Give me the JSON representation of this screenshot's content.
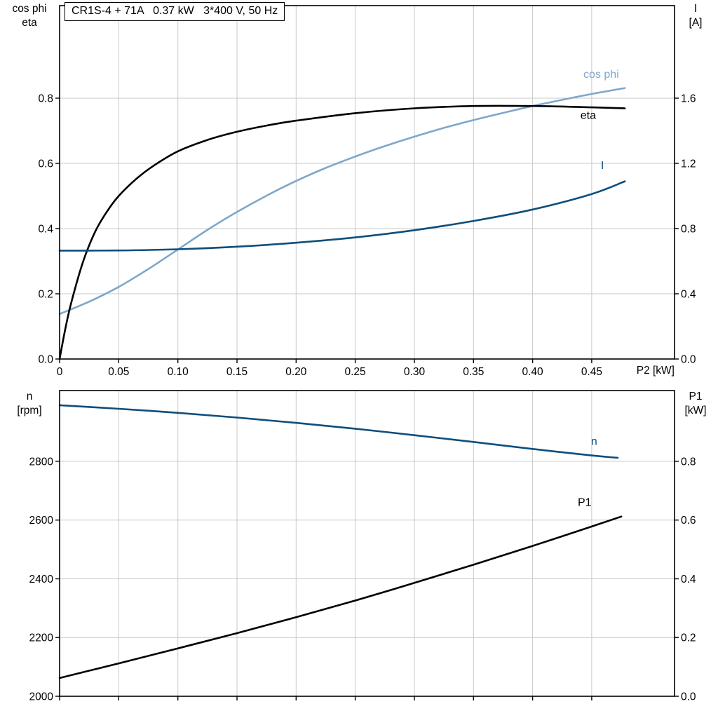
{
  "chart_data": [
    {
      "type": "line",
      "title": "CR1S-4 + 71A   0.37 kW   3*400 V, 50 Hz",
      "grid": true,
      "legend_position": "inline-curve-labels",
      "x_axis": {
        "label": "P2 [kW]",
        "min": 0,
        "max": 0.52,
        "ticks": [
          0,
          0.05,
          0.1,
          0.15,
          0.2,
          0.25,
          0.3,
          0.35,
          0.4,
          0.45
        ],
        "tick_labels": [
          "0",
          "0.05",
          "0.10",
          "0.15",
          "0.20",
          "0.25",
          "0.30",
          "0.35",
          "0.40",
          "0.45"
        ],
        "show_tick_labels": true
      },
      "y_left": {
        "labels": [
          "cos phi",
          "eta"
        ],
        "min": 0,
        "max": 1.084,
        "ticks": [
          0,
          0.2,
          0.4,
          0.6,
          0.8
        ],
        "tick_labels": [
          "0.0",
          "0.2",
          "0.4",
          "0.6",
          "0.8"
        ]
      },
      "y_right": {
        "labels": [
          "I",
          "[A]"
        ],
        "min": 0,
        "max": 2.168,
        "ticks": [
          0,
          0.4,
          0.8,
          1.2,
          1.6
        ],
        "tick_labels": [
          "0.0",
          "0.4",
          "0.8",
          "1.2",
          "1.6"
        ]
      },
      "series": [
        {
          "name": "cos phi",
          "slug": "cos-phi",
          "axis": "left",
          "color": "#7ea7ca",
          "width": 2.6,
          "label": {
            "text": "cos phi",
            "x": 0.458,
            "y": 0.862,
            "anchor": "middle"
          },
          "points": [
            [
              0,
              0.138
            ],
            [
              0.025,
              0.176
            ],
            [
              0.05,
              0.221
            ],
            [
              0.075,
              0.276
            ],
            [
              0.1,
              0.336
            ],
            [
              0.125,
              0.396
            ],
            [
              0.15,
              0.451
            ],
            [
              0.175,
              0.501
            ],
            [
              0.2,
              0.546
            ],
            [
              0.225,
              0.586
            ],
            [
              0.25,
              0.621
            ],
            [
              0.275,
              0.653
            ],
            [
              0.3,
              0.682
            ],
            [
              0.325,
              0.709
            ],
            [
              0.35,
              0.733
            ],
            [
              0.375,
              0.755
            ],
            [
              0.4,
              0.776
            ],
            [
              0.425,
              0.795
            ],
            [
              0.45,
              0.813
            ],
            [
              0.478,
              0.831
            ]
          ]
        },
        {
          "name": "eta",
          "slug": "eta",
          "axis": "left",
          "color": "#000000",
          "width": 2.6,
          "label": {
            "text": "eta",
            "x": 0.447,
            "y": 0.737,
            "anchor": "middle"
          },
          "points": [
            [
              0,
              0
            ],
            [
              0.005,
              0.095
            ],
            [
              0.01,
              0.175
            ],
            [
              0.02,
              0.3
            ],
            [
              0.03,
              0.39
            ],
            [
              0.04,
              0.452
            ],
            [
              0.05,
              0.5
            ],
            [
              0.065,
              0.553
            ],
            [
              0.08,
              0.594
            ],
            [
              0.1,
              0.637
            ],
            [
              0.125,
              0.672
            ],
            [
              0.15,
              0.697
            ],
            [
              0.175,
              0.716
            ],
            [
              0.2,
              0.731
            ],
            [
              0.25,
              0.754
            ],
            [
              0.3,
              0.769
            ],
            [
              0.35,
              0.776
            ],
            [
              0.4,
              0.776
            ],
            [
              0.45,
              0.772
            ],
            [
              0.478,
              0.769
            ]
          ]
        },
        {
          "name": "I",
          "slug": "current",
          "axis": "right",
          "color": "#0f4e7c",
          "width": 2.6,
          "label": {
            "text": "I",
            "x": 0.459,
            "y": 1.165,
            "anchor": "middle"
          },
          "points": [
            [
              0,
              0.665
            ],
            [
              0.05,
              0.666
            ],
            [
              0.1,
              0.673
            ],
            [
              0.15,
              0.689
            ],
            [
              0.2,
              0.713
            ],
            [
              0.25,
              0.746
            ],
            [
              0.3,
              0.79
            ],
            [
              0.35,
              0.847
            ],
            [
              0.4,
              0.917
            ],
            [
              0.45,
              1.012
            ],
            [
              0.478,
              1.09
            ]
          ]
        }
      ]
    },
    {
      "type": "line",
      "title": "",
      "grid": true,
      "legend_position": "inline-curve-labels",
      "x_axis": {
        "label": "",
        "min": 0,
        "max": 0.52,
        "ticks": [
          0,
          0.05,
          0.1,
          0.15,
          0.2,
          0.25,
          0.3,
          0.35,
          0.4,
          0.45
        ],
        "tick_labels": [],
        "show_tick_labels": false
      },
      "y_left": {
        "labels": [
          "n",
          "[rpm]"
        ],
        "min": 2000,
        "max": 3041,
        "ticks": [
          2000,
          2200,
          2400,
          2600,
          2800
        ],
        "tick_labels": [
          "2000",
          "2200",
          "2400",
          "2600",
          "2800"
        ]
      },
      "y_right": {
        "labels": [
          "P1",
          "[kW]"
        ],
        "min": 0,
        "max": 1.041,
        "ticks": [
          0,
          0.2,
          0.4,
          0.6,
          0.8
        ],
        "tick_labels": [
          "0.0",
          "0.2",
          "0.4",
          "0.6",
          "0.8"
        ]
      },
      "series": [
        {
          "name": "n",
          "slug": "speed",
          "axis": "left",
          "color": "#0f4e7c",
          "width": 2.6,
          "label": {
            "text": "n",
            "x": 0.452,
            "y": 2856,
            "anchor": "middle"
          },
          "points": [
            [
              0,
              2991
            ],
            [
              0.05,
              2979
            ],
            [
              0.1,
              2965
            ],
            [
              0.15,
              2949
            ],
            [
              0.2,
              2931
            ],
            [
              0.25,
              2911
            ],
            [
              0.3,
              2889
            ],
            [
              0.35,
              2866
            ],
            [
              0.4,
              2842
            ],
            [
              0.45,
              2820
            ],
            [
              0.472,
              2812
            ]
          ]
        },
        {
          "name": "P1",
          "slug": "p1",
          "axis": "right",
          "color": "#000000",
          "width": 2.6,
          "label": {
            "text": "P1",
            "x": 0.444,
            "y": 0.648,
            "anchor": "middle"
          },
          "points": [
            [
              0,
              0.062
            ],
            [
              0.05,
              0.112
            ],
            [
              0.1,
              0.163
            ],
            [
              0.15,
              0.215
            ],
            [
              0.2,
              0.269
            ],
            [
              0.25,
              0.326
            ],
            [
              0.3,
              0.386
            ],
            [
              0.35,
              0.448
            ],
            [
              0.4,
              0.512
            ],
            [
              0.45,
              0.578
            ],
            [
              0.475,
              0.612
            ]
          ]
        }
      ]
    }
  ],
  "colors": {
    "cos_phi_blue": "#7ea7ca",
    "dark_blue": "#0f4e7c",
    "black": "#000000",
    "grid": "#c9c9c9"
  }
}
